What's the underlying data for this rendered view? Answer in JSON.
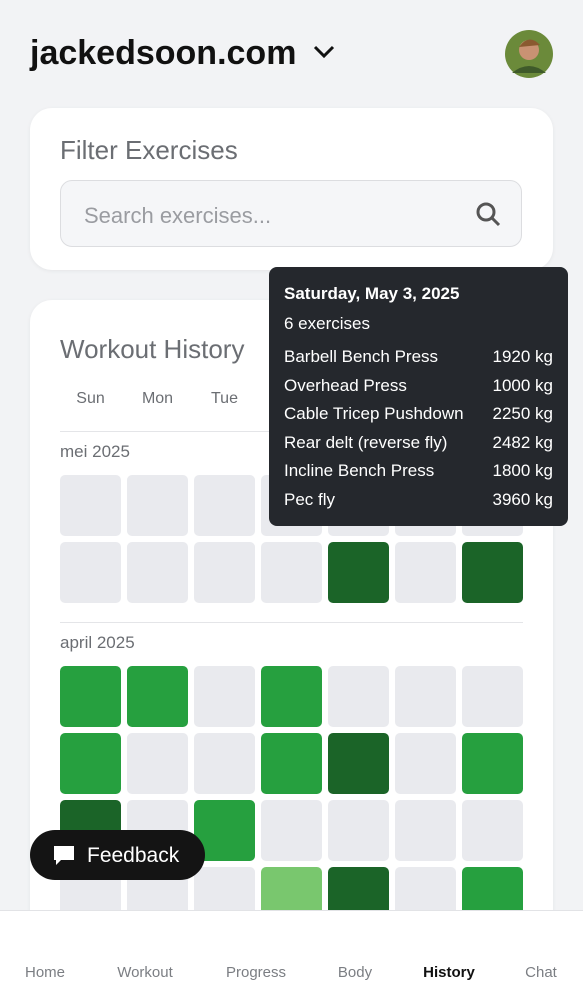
{
  "header": {
    "title": "jackedsoon.com"
  },
  "filter": {
    "title": "Filter Exercises",
    "placeholder": "Search exercises..."
  },
  "history": {
    "title": "Workout History",
    "weekdays": [
      "Sun",
      "Mon",
      "Tue"
    ],
    "months": [
      {
        "label": "mei 2025",
        "weeks": [
          [
            "#e9eaee",
            "#e9eaee",
            "#e9eaee",
            "#e9eaee",
            "#e9eaee",
            "#e9eaee",
            "#e9eaee"
          ],
          [
            "#e9eaee",
            "#e9eaee",
            "#e9eaee",
            "#e9eaee",
            "#1b6428",
            "#e9eaee",
            "#1b6428"
          ]
        ]
      },
      {
        "label": "april 2025",
        "weeks": [
          [
            "#26a03f",
            "#26a03f",
            "#e9eaee",
            "#26a03f",
            "#e9eaee",
            "#e9eaee",
            "#e9eaee"
          ],
          [
            "#26a03f",
            "#e9eaee",
            "#e9eaee",
            "#26a03f",
            "#1b6428",
            "#e9eaee",
            "#26a03f"
          ],
          [
            "#1b6428",
            "#e9eaee",
            "#26a03f",
            "#e9eaee",
            "#e9eaee",
            "#e9eaee",
            "#e9eaee"
          ],
          [
            "#e9eaee",
            "#e9eaee",
            "#e9eaee",
            "#79c76e",
            "#1b6428",
            "#e9eaee",
            "#26a03f"
          ]
        ]
      }
    ],
    "tooltip": {
      "date": "Saturday, May 3, 2025",
      "count": "6 exercises",
      "exercises": [
        {
          "name": "Barbell Bench Press",
          "weight": "1920 kg"
        },
        {
          "name": "Overhead Press",
          "weight": "1000 kg"
        },
        {
          "name": "Cable Tricep Pushdown",
          "weight": "2250 kg"
        },
        {
          "name": "Rear delt (reverse fly)",
          "weight": "2482 kg"
        },
        {
          "name": "Incline Bench Press",
          "weight": "1800 kg"
        },
        {
          "name": "Pec fly",
          "weight": "3960 kg"
        }
      ]
    }
  },
  "feedback": "Feedback",
  "nav": [
    {
      "label": "Home",
      "active": false
    },
    {
      "label": "Workout",
      "active": false
    },
    {
      "label": "Progress",
      "active": false
    },
    {
      "label": "Body",
      "active": false
    },
    {
      "label": "History",
      "active": true
    },
    {
      "label": "Chat",
      "active": false
    }
  ]
}
